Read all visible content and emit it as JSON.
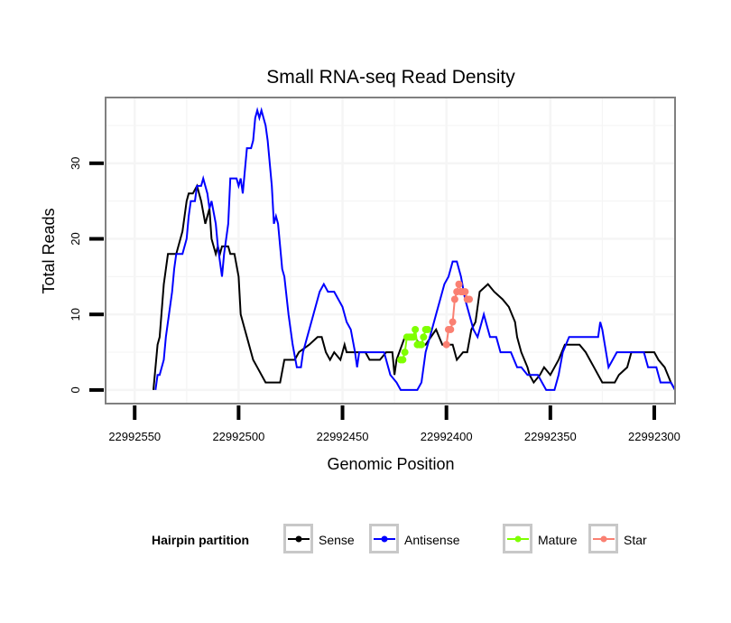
{
  "chart_data": {
    "type": "line",
    "title": "Small RNA-seq Read Density",
    "xlabel": "Genomic Position",
    "ylabel": "Total Reads",
    "x_reversed": true,
    "xlim": [
      22992564,
      22992290
    ],
    "ylim": [
      -1.8,
      38.7
    ],
    "x_ticks": [
      22992550,
      22992500,
      22992450,
      22992400,
      22992350,
      22992300
    ],
    "x_tick_labels": [
      "22992550",
      "22992500",
      "22992450",
      "22992400",
      "22992350",
      "22992300"
    ],
    "y_ticks": [
      0,
      10,
      20,
      30
    ],
    "y_tick_labels": [
      "0",
      "10",
      "20",
      "30"
    ],
    "grid": true,
    "legend": {
      "title": "Hairpin partition",
      "position": "bottom",
      "entries": [
        {
          "name": "Sense",
          "color": "#000000"
        },
        {
          "name": "Antisense",
          "color": "#0000ff"
        },
        {
          "name": "Mature",
          "color": "#7fff00"
        },
        {
          "name": "Star",
          "color": "#fa8072"
        }
      ]
    },
    "series": [
      {
        "name": "Sense",
        "color": "#000000",
        "style": "line",
        "points": [
          [
            22992541,
            0
          ],
          [
            22992539,
            6
          ],
          [
            22992538,
            7
          ],
          [
            22992536,
            14
          ],
          [
            22992534,
            18
          ],
          [
            22992530,
            18
          ],
          [
            22992528,
            20
          ],
          [
            22992527,
            21
          ],
          [
            22992525,
            25
          ],
          [
            22992524,
            26
          ],
          [
            22992522,
            26
          ],
          [
            22992520,
            27
          ],
          [
            22992518,
            25
          ],
          [
            22992516,
            22
          ],
          [
            22992514,
            24
          ],
          [
            22992513,
            20
          ],
          [
            22992511,
            18
          ],
          [
            22992510,
            19
          ],
          [
            22992509,
            18
          ],
          [
            22992508,
            19
          ],
          [
            22992505,
            19
          ],
          [
            22992504,
            18
          ],
          [
            22992502,
            18
          ],
          [
            22992500,
            15
          ],
          [
            22992499,
            10
          ],
          [
            22992497,
            8
          ],
          [
            22992496,
            7
          ],
          [
            22992494,
            5
          ],
          [
            22992493,
            4
          ],
          [
            22992491,
            3
          ],
          [
            22992487,
            1
          ],
          [
            22992480,
            1
          ],
          [
            22992478,
            4
          ],
          [
            22992473,
            4
          ],
          [
            22992471,
            5
          ],
          [
            22992466,
            6
          ],
          [
            22992462,
            7
          ],
          [
            22992460,
            7
          ],
          [
            22992458,
            5
          ],
          [
            22992456,
            4
          ],
          [
            22992454,
            5
          ],
          [
            22992451,
            4
          ],
          [
            22992449,
            6
          ],
          [
            22992448,
            5
          ],
          [
            22992439,
            5
          ],
          [
            22992437,
            4
          ],
          [
            22992432,
            4
          ],
          [
            22992429,
            5
          ],
          [
            22992426,
            5
          ],
          [
            22992425,
            2
          ],
          [
            22992424,
            4
          ],
          [
            22992420,
            7
          ],
          [
            22992415,
            7
          ],
          [
            22992413,
            6
          ],
          [
            22992410,
            6
          ],
          [
            22992405,
            8
          ],
          [
            22992402,
            6
          ],
          [
            22992397,
            6
          ],
          [
            22992395,
            4
          ],
          [
            22992392,
            5
          ],
          [
            22992390,
            5
          ],
          [
            22992388,
            8
          ],
          [
            22992386,
            9
          ],
          [
            22992384,
            13
          ],
          [
            22992380,
            14
          ],
          [
            22992377,
            13
          ],
          [
            22992373,
            12
          ],
          [
            22992370,
            11
          ],
          [
            22992367,
            9
          ],
          [
            22992366,
            7
          ],
          [
            22992364,
            5
          ],
          [
            22992361,
            3
          ],
          [
            22992360,
            2
          ],
          [
            22992358,
            1
          ],
          [
            22992355,
            2
          ],
          [
            22992353,
            3
          ],
          [
            22992350,
            2
          ],
          [
            22992346,
            4
          ],
          [
            22992343,
            6
          ],
          [
            22992336,
            6
          ],
          [
            22992333,
            5
          ],
          [
            22992331,
            4
          ],
          [
            22992329,
            3
          ],
          [
            22992325,
            1
          ],
          [
            22992319,
            1
          ],
          [
            22992317,
            2
          ],
          [
            22992313,
            3
          ],
          [
            22992311,
            5
          ],
          [
            22992300,
            5
          ],
          [
            22992298,
            4
          ],
          [
            22992295,
            3
          ],
          [
            22992292,
            1
          ],
          [
            22992290,
            0
          ]
        ]
      },
      {
        "name": "Antisense",
        "color": "#0000ff",
        "style": "line",
        "points": [
          [
            22992540,
            0
          ],
          [
            22992539,
            2
          ],
          [
            22992538,
            2
          ],
          [
            22992536,
            4
          ],
          [
            22992535,
            7
          ],
          [
            22992533,
            11
          ],
          [
            22992532,
            13
          ],
          [
            22992531,
            16
          ],
          [
            22992530,
            18
          ],
          [
            22992527,
            18
          ],
          [
            22992525,
            20
          ],
          [
            22992524,
            23
          ],
          [
            22992523,
            25
          ],
          [
            22992521,
            25
          ],
          [
            22992520,
            27
          ],
          [
            22992518,
            27
          ],
          [
            22992517,
            28
          ],
          [
            22992515,
            26
          ],
          [
            22992514,
            24
          ],
          [
            22992513,
            25
          ],
          [
            22992511,
            22
          ],
          [
            22992510,
            19
          ],
          [
            22992508,
            15
          ],
          [
            22992507,
            18
          ],
          [
            22992505,
            22
          ],
          [
            22992504,
            28
          ],
          [
            22992501,
            28
          ],
          [
            22992500,
            27
          ],
          [
            22992499,
            28
          ],
          [
            22992498,
            26
          ],
          [
            22992496,
            32
          ],
          [
            22992494,
            32
          ],
          [
            22992493,
            33
          ],
          [
            22992492,
            36
          ],
          [
            22992491,
            37
          ],
          [
            22992490,
            36
          ],
          [
            22992489,
            37
          ],
          [
            22992488,
            36
          ],
          [
            22992487,
            35
          ],
          [
            22992486,
            33
          ],
          [
            22992484,
            27
          ],
          [
            22992483,
            22
          ],
          [
            22992482,
            23
          ],
          [
            22992481,
            22
          ],
          [
            22992479,
            16
          ],
          [
            22992478,
            15
          ],
          [
            22992476,
            10
          ],
          [
            22992474,
            6
          ],
          [
            22992472,
            3
          ],
          [
            22992470,
            3
          ],
          [
            22992469,
            5
          ],
          [
            22992467,
            7
          ],
          [
            22992465,
            9
          ],
          [
            22992463,
            11
          ],
          [
            22992461,
            13
          ],
          [
            22992459,
            14
          ],
          [
            22992457,
            13
          ],
          [
            22992454,
            13
          ],
          [
            22992452,
            12
          ],
          [
            22992450,
            11
          ],
          [
            22992448,
            9
          ],
          [
            22992446,
            8
          ],
          [
            22992444,
            5
          ],
          [
            22992443,
            3
          ],
          [
            22992442,
            5
          ],
          [
            22992430,
            5
          ],
          [
            22992428,
            3
          ],
          [
            22992427,
            2
          ],
          [
            22992424,
            1
          ],
          [
            22992422,
            0
          ],
          [
            22992414,
            0
          ],
          [
            22992412,
            1
          ],
          [
            22992410,
            5
          ],
          [
            22992407,
            8
          ],
          [
            22992405,
            10
          ],
          [
            22992403,
            12
          ],
          [
            22992401,
            14
          ],
          [
            22992399,
            15
          ],
          [
            22992397,
            17
          ],
          [
            22992395,
            17
          ],
          [
            22992393,
            15
          ],
          [
            22992391,
            12
          ],
          [
            22992389,
            10
          ],
          [
            22992387,
            8
          ],
          [
            22992385,
            7
          ],
          [
            22992383,
            9
          ],
          [
            22992382,
            10
          ],
          [
            22992380,
            8
          ],
          [
            22992379,
            7
          ],
          [
            22992376,
            7
          ],
          [
            22992374,
            5
          ],
          [
            22992369,
            5
          ],
          [
            22992366,
            3
          ],
          [
            22992364,
            3
          ],
          [
            22992361,
            2
          ],
          [
            22992356,
            2
          ],
          [
            22992354,
            1
          ],
          [
            22992352,
            0
          ],
          [
            22992348,
            0
          ],
          [
            22992346,
            2
          ],
          [
            22992344,
            5
          ],
          [
            22992341,
            7
          ],
          [
            22992327,
            7
          ],
          [
            22992326,
            9
          ],
          [
            22992325,
            8
          ],
          [
            22992322,
            3
          ],
          [
            22992320,
            4
          ],
          [
            22992318,
            5
          ],
          [
            22992305,
            5
          ],
          [
            22992303,
            3
          ],
          [
            22992299,
            3
          ],
          [
            22992297,
            1
          ],
          [
            22992292,
            1
          ],
          [
            22992290,
            0
          ]
        ]
      },
      {
        "name": "Mature",
        "color": "#7fff00",
        "style": "points",
        "points": [
          [
            22992422,
            4
          ],
          [
            22992421,
            4
          ],
          [
            22992420,
            5
          ],
          [
            22992419,
            7
          ],
          [
            22992418,
            7
          ],
          [
            22992417,
            7
          ],
          [
            22992416,
            7
          ],
          [
            22992415,
            8
          ],
          [
            22992414,
            6
          ],
          [
            22992413,
            6
          ],
          [
            22992412,
            6
          ],
          [
            22992411,
            7
          ],
          [
            22992410,
            8
          ],
          [
            22992409,
            8
          ]
        ]
      },
      {
        "name": "Star",
        "color": "#fa8072",
        "style": "points",
        "points": [
          [
            22992400,
            6
          ],
          [
            22992399,
            8
          ],
          [
            22992398,
            8
          ],
          [
            22992397,
            9
          ],
          [
            22992396,
            12
          ],
          [
            22992395,
            13
          ],
          [
            22992394,
            14
          ],
          [
            22992393,
            13
          ],
          [
            22992392,
            13
          ],
          [
            22992391,
            13
          ],
          [
            22992390,
            12
          ],
          [
            22992389,
            12
          ]
        ]
      }
    ]
  }
}
